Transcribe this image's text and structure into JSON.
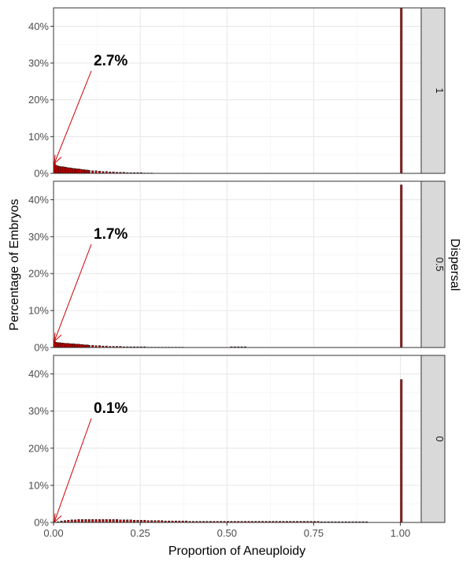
{
  "chart_data": {
    "type": "bar",
    "xlabel": "Proportion of Aneuploidy",
    "ylabel": "Percentage of Embryos",
    "facet_label": "Dispersal",
    "xlim": [
      0,
      1.06
    ],
    "ylim": [
      0,
      45
    ],
    "x_ticks": [
      0,
      0.25,
      0.5,
      0.75,
      1.0
    ],
    "x_tick_labels": [
      "0.00",
      "0.25",
      "0.50",
      "0.75",
      "1.00"
    ],
    "y_ticks": [
      0,
      10,
      20,
      30,
      40
    ],
    "y_tick_labels": [
      "0%",
      "10%",
      "20%",
      "30%",
      "40%"
    ],
    "bar_fill": "#cc0000",
    "bar_outline": "#000000",
    "grid": true,
    "panels": [
      {
        "strip": "1",
        "annotation": "2.7%",
        "annotation_value": 2.7,
        "bars": [
          [
            0.0,
            2.7
          ],
          [
            0.005,
            2.2
          ],
          [
            0.01,
            2.0
          ],
          [
            0.015,
            1.9
          ],
          [
            0.02,
            1.8
          ],
          [
            0.025,
            1.8
          ],
          [
            0.03,
            1.7
          ],
          [
            0.035,
            1.6
          ],
          [
            0.04,
            1.5
          ],
          [
            0.045,
            1.5
          ],
          [
            0.05,
            1.4
          ],
          [
            0.055,
            1.3
          ],
          [
            0.06,
            1.3
          ],
          [
            0.065,
            1.2
          ],
          [
            0.07,
            1.2
          ],
          [
            0.075,
            1.1
          ],
          [
            0.08,
            1.0
          ],
          [
            0.085,
            1.0
          ],
          [
            0.09,
            0.9
          ],
          [
            0.095,
            0.9
          ],
          [
            0.1,
            0.8
          ],
          [
            0.11,
            0.7
          ],
          [
            0.12,
            0.7
          ],
          [
            0.13,
            0.6
          ],
          [
            0.14,
            0.5
          ],
          [
            0.15,
            0.5
          ],
          [
            0.16,
            0.4
          ],
          [
            0.17,
            0.4
          ],
          [
            0.18,
            0.3
          ],
          [
            0.19,
            0.3
          ],
          [
            0.2,
            0.3
          ],
          [
            0.21,
            0.2
          ],
          [
            0.22,
            0.2
          ],
          [
            0.23,
            0.2
          ],
          [
            0.24,
            0.2
          ],
          [
            0.25,
            0.2
          ],
          [
            0.26,
            0.1
          ],
          [
            0.27,
            0.1
          ],
          [
            0.28,
            0.1
          ],
          [
            1.0,
            45.0
          ]
        ]
      },
      {
        "strip": "0.5",
        "annotation": "1.7%",
        "annotation_value": 1.7,
        "bars": [
          [
            0.0,
            1.7
          ],
          [
            0.005,
            1.4
          ],
          [
            0.01,
            1.3
          ],
          [
            0.015,
            1.3
          ],
          [
            0.02,
            1.2
          ],
          [
            0.025,
            1.2
          ],
          [
            0.03,
            1.1
          ],
          [
            0.035,
            1.1
          ],
          [
            0.04,
            1.1
          ],
          [
            0.045,
            1.0
          ],
          [
            0.05,
            1.0
          ],
          [
            0.055,
            1.0
          ],
          [
            0.06,
            0.9
          ],
          [
            0.065,
            0.9
          ],
          [
            0.07,
            0.9
          ],
          [
            0.075,
            0.8
          ],
          [
            0.08,
            0.8
          ],
          [
            0.085,
            0.7
          ],
          [
            0.09,
            0.7
          ],
          [
            0.095,
            0.7
          ],
          [
            0.1,
            0.6
          ],
          [
            0.11,
            0.6
          ],
          [
            0.12,
            0.5
          ],
          [
            0.13,
            0.5
          ],
          [
            0.14,
            0.4
          ],
          [
            0.15,
            0.4
          ],
          [
            0.16,
            0.3
          ],
          [
            0.17,
            0.3
          ],
          [
            0.18,
            0.3
          ],
          [
            0.19,
            0.3
          ],
          [
            0.2,
            0.2
          ],
          [
            0.21,
            0.2
          ],
          [
            0.22,
            0.2
          ],
          [
            0.23,
            0.2
          ],
          [
            0.24,
            0.2
          ],
          [
            0.25,
            0.2
          ],
          [
            0.26,
            0.2
          ],
          [
            0.27,
            0.1
          ],
          [
            0.28,
            0.1
          ],
          [
            0.29,
            0.1
          ],
          [
            0.3,
            0.1
          ],
          [
            0.31,
            0.1
          ],
          [
            0.32,
            0.1
          ],
          [
            0.33,
            0.1
          ],
          [
            0.34,
            0.1
          ],
          [
            0.35,
            0.1
          ],
          [
            0.36,
            0.1
          ],
          [
            0.37,
            0.1
          ],
          [
            0.51,
            0.2
          ],
          [
            0.52,
            0.2
          ],
          [
            0.53,
            0.2
          ],
          [
            0.54,
            0.2
          ],
          [
            0.55,
            0.2
          ],
          [
            1.0,
            44.0
          ]
        ]
      },
      {
        "strip": "0",
        "annotation": "0.1%",
        "annotation_value": 0.1,
        "bars": [
          [
            0.0,
            0.1
          ],
          [
            0.01,
            0.2
          ],
          [
            0.02,
            0.4
          ],
          [
            0.03,
            0.5
          ],
          [
            0.04,
            0.6
          ],
          [
            0.05,
            0.7
          ],
          [
            0.06,
            0.7
          ],
          [
            0.07,
            0.8
          ],
          [
            0.08,
            0.8
          ],
          [
            0.09,
            0.8
          ],
          [
            0.1,
            0.8
          ],
          [
            0.11,
            0.8
          ],
          [
            0.12,
            0.8
          ],
          [
            0.13,
            0.8
          ],
          [
            0.14,
            0.8
          ],
          [
            0.15,
            0.8
          ],
          [
            0.16,
            0.8
          ],
          [
            0.17,
            0.8
          ],
          [
            0.18,
            0.8
          ],
          [
            0.19,
            0.7
          ],
          [
            0.2,
            0.7
          ],
          [
            0.21,
            0.7
          ],
          [
            0.22,
            0.7
          ],
          [
            0.23,
            0.6
          ],
          [
            0.24,
            0.6
          ],
          [
            0.25,
            0.6
          ],
          [
            0.26,
            0.6
          ],
          [
            0.27,
            0.5
          ],
          [
            0.28,
            0.5
          ],
          [
            0.29,
            0.5
          ],
          [
            0.3,
            0.5
          ],
          [
            0.31,
            0.5
          ],
          [
            0.32,
            0.4
          ],
          [
            0.33,
            0.4
          ],
          [
            0.34,
            0.4
          ],
          [
            0.35,
            0.4
          ],
          [
            0.36,
            0.4
          ],
          [
            0.37,
            0.4
          ],
          [
            0.38,
            0.4
          ],
          [
            0.39,
            0.3
          ],
          [
            0.4,
            0.3
          ],
          [
            0.41,
            0.3
          ],
          [
            0.42,
            0.3
          ],
          [
            0.43,
            0.3
          ],
          [
            0.44,
            0.3
          ],
          [
            0.45,
            0.3
          ],
          [
            0.46,
            0.3
          ],
          [
            0.47,
            0.3
          ],
          [
            0.48,
            0.3
          ],
          [
            0.49,
            0.3
          ],
          [
            0.5,
            0.3
          ],
          [
            0.51,
            0.3
          ],
          [
            0.52,
            0.3
          ],
          [
            0.53,
            0.3
          ],
          [
            0.54,
            0.3
          ],
          [
            0.55,
            0.3
          ],
          [
            0.56,
            0.3
          ],
          [
            0.57,
            0.3
          ],
          [
            0.58,
            0.3
          ],
          [
            0.59,
            0.3
          ],
          [
            0.6,
            0.3
          ],
          [
            0.61,
            0.3
          ],
          [
            0.62,
            0.3
          ],
          [
            0.63,
            0.3
          ],
          [
            0.64,
            0.3
          ],
          [
            0.65,
            0.3
          ],
          [
            0.66,
            0.3
          ],
          [
            0.67,
            0.3
          ],
          [
            0.68,
            0.3
          ],
          [
            0.69,
            0.3
          ],
          [
            0.7,
            0.3
          ],
          [
            0.71,
            0.3
          ],
          [
            0.72,
            0.3
          ],
          [
            0.73,
            0.3
          ],
          [
            0.74,
            0.3
          ],
          [
            0.75,
            0.3
          ],
          [
            0.76,
            0.3
          ],
          [
            0.77,
            0.2
          ],
          [
            0.78,
            0.2
          ],
          [
            0.79,
            0.2
          ],
          [
            0.8,
            0.2
          ],
          [
            0.81,
            0.2
          ],
          [
            0.82,
            0.2
          ],
          [
            0.83,
            0.2
          ],
          [
            0.84,
            0.2
          ],
          [
            0.85,
            0.2
          ],
          [
            0.86,
            0.2
          ],
          [
            0.87,
            0.2
          ],
          [
            0.88,
            0.2
          ],
          [
            0.89,
            0.2
          ],
          [
            0.9,
            0.2
          ],
          [
            1.0,
            38.5
          ]
        ]
      }
    ]
  }
}
